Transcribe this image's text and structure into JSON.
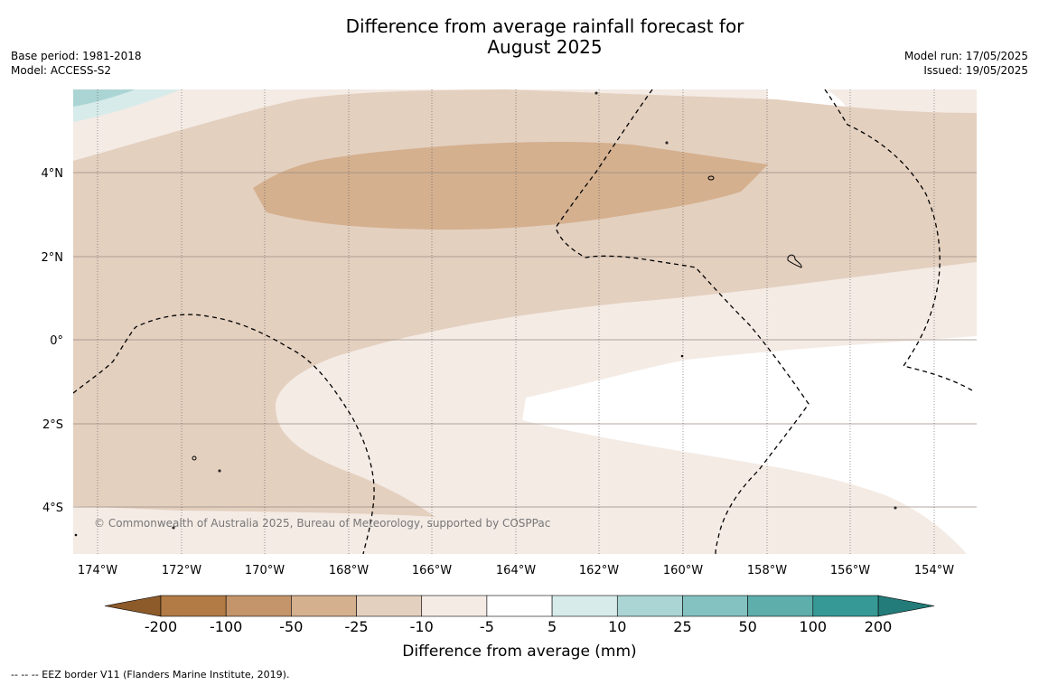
{
  "title_line1": "Difference from average rainfall forecast for",
  "title_line2": "August 2025",
  "base_period": "Base period: 1981-2018",
  "model": "Model: ACCESS-S2",
  "model_run": "Model run: 17/05/2025",
  "issued": "Issued: 19/05/2025",
  "lat_labels": [
    "4°N",
    "2°N",
    "0°",
    "2°S",
    "4°S"
  ],
  "lon_labels": [
    "174°W",
    "172°W",
    "170°W",
    "168°W",
    "166°W",
    "164°W",
    "162°W",
    "160°W",
    "158°W",
    "156°W",
    "154°W"
  ],
  "colorbar": {
    "labels": [
      "-200",
      "-100",
      "-50",
      "-25",
      "-10",
      "-5",
      "5",
      "10",
      "25",
      "50",
      "100",
      "200"
    ],
    "colors": [
      "#8d5a2a",
      "#b27a45",
      "#c4956a",
      "#d4b08f",
      "#e4d0bf",
      "#f4ebe5",
      "#ffffff",
      "#d7ebea",
      "#abd5d4",
      "#83c2c0",
      "#5eaeab",
      "#369995",
      "#237c79"
    ],
    "title": "Difference from average (mm)"
  },
  "copyright": "© Commonwealth of Australia 2025, Bureau of Meteorology, supported by COSPPac",
  "footer": "--  --  -- EEZ border V11 (Flanders Marine Institute, 2019)."
}
